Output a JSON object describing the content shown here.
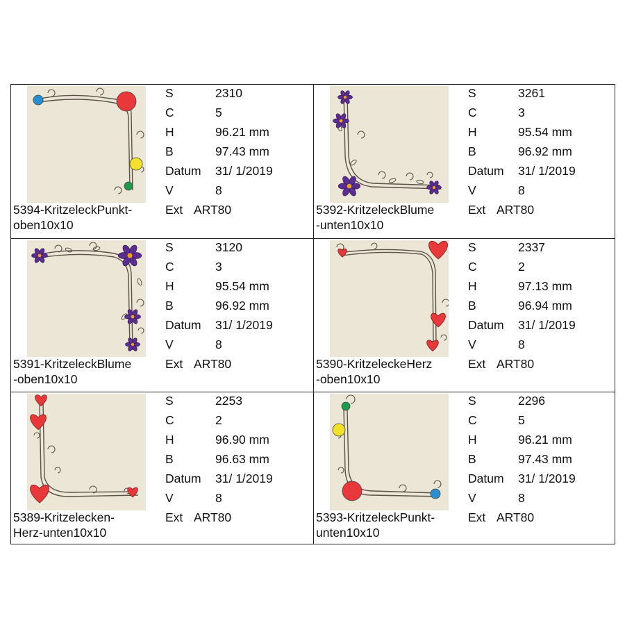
{
  "designs": [
    {
      "name_line1": "5394-KritzeleckPunkt-",
      "name_line2": "oben10x10",
      "motif": "dots-top",
      "specs": [
        {
          "label": "S",
          "value": "2310"
        },
        {
          "label": "C",
          "value": "5"
        },
        {
          "label": "H",
          "value": "96.21 mm"
        },
        {
          "label": "B",
          "value": "97.43 mm"
        },
        {
          "label": "Datum",
          "value": "31/ 1/2019"
        },
        {
          "label": "V",
          "value": "8"
        }
      ],
      "ext_label": "Ext",
      "ext_value": "ART80"
    },
    {
      "name_line1": "5392-KritzeleckBlume",
      "name_line2": "-unten10x10",
      "motif": "flowers-bottom",
      "specs": [
        {
          "label": "S",
          "value": "3261"
        },
        {
          "label": "C",
          "value": "3"
        },
        {
          "label": "H",
          "value": "95.54 mm"
        },
        {
          "label": "B",
          "value": "96.92 mm"
        },
        {
          "label": "Datum",
          "value": "31/ 1/2019"
        },
        {
          "label": "V",
          "value": "8"
        }
      ],
      "ext_label": "Ext",
      "ext_value": "ART80"
    },
    {
      "name_line1": "5391-KritzeleckBlume",
      "name_line2": "-oben10x10",
      "motif": "flowers-top",
      "specs": [
        {
          "label": "S",
          "value": "3120"
        },
        {
          "label": "C",
          "value": "3"
        },
        {
          "label": "H",
          "value": "95.54 mm"
        },
        {
          "label": "B",
          "value": "96.92 mm"
        },
        {
          "label": "Datum",
          "value": "31/ 1/2019"
        },
        {
          "label": "V",
          "value": "8"
        }
      ],
      "ext_label": "Ext",
      "ext_value": "ART80"
    },
    {
      "name_line1": "5390-KritzeleckeHerz",
      "name_line2": "-oben10x10",
      "motif": "hearts-top",
      "specs": [
        {
          "label": "S",
          "value": "2337"
        },
        {
          "label": "C",
          "value": "2"
        },
        {
          "label": "H",
          "value": "97.13 mm"
        },
        {
          "label": "B",
          "value": "96.94 mm"
        },
        {
          "label": "Datum",
          "value": "31/ 1/2019"
        },
        {
          "label": "V",
          "value": "8"
        }
      ],
      "ext_label": "Ext",
      "ext_value": "ART80"
    },
    {
      "name_line1": "5389-Kritzelecken-",
      "name_line2": "Herz-unten10x10",
      "motif": "hearts-bottom",
      "specs": [
        {
          "label": "S",
          "value": "2253"
        },
        {
          "label": "C",
          "value": "2"
        },
        {
          "label": "H",
          "value": "96.90 mm"
        },
        {
          "label": "B",
          "value": "96.63 mm"
        },
        {
          "label": "Datum",
          "value": "31/ 1/2019"
        },
        {
          "label": "V",
          "value": "8"
        }
      ],
      "ext_label": "Ext",
      "ext_value": "ART80"
    },
    {
      "name_line1": "5393-KritzeleckPunkt-",
      "name_line2": "unten10x10",
      "motif": "dots-bottom",
      "specs": [
        {
          "label": "S",
          "value": "2296"
        },
        {
          "label": "C",
          "value": "5"
        },
        {
          "label": "H",
          "value": "96.21 mm"
        },
        {
          "label": "B",
          "value": "97.43 mm"
        },
        {
          "label": "Datum",
          "value": "31/ 1/2019"
        },
        {
          "label": "V",
          "value": "8"
        }
      ],
      "ext_label": "Ext",
      "ext_value": "ART80"
    }
  ],
  "colors": {
    "thumb_bg": "#ebe6d6",
    "vine": "#5c5147",
    "red": "#e8383a",
    "yellow": "#f2e02a",
    "green": "#1f9a4a",
    "blue": "#2a8fd0",
    "purple": "#5b2d8f",
    "flower_center": "#f0a020"
  }
}
